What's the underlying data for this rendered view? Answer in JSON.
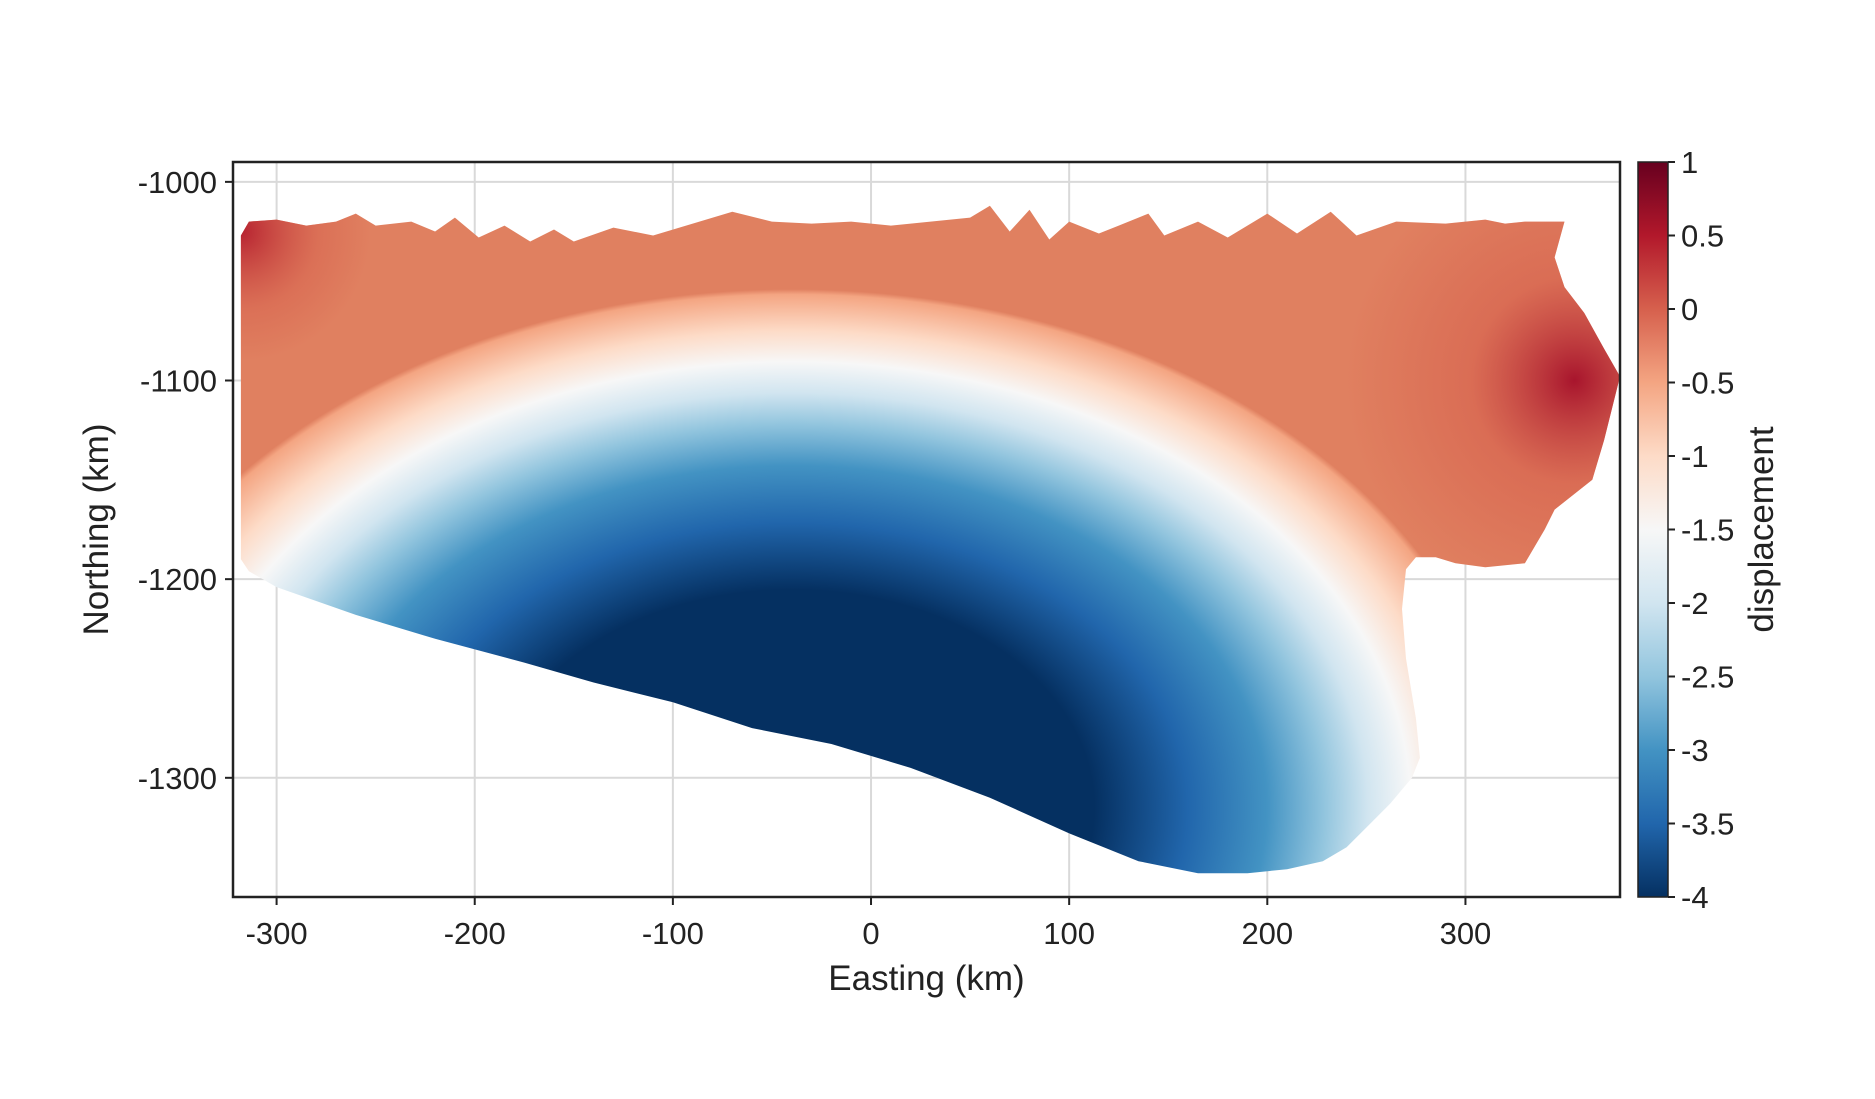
{
  "chart_data": {
    "type": "heatmap",
    "title": "",
    "xlabel": "Easting (km)",
    "ylabel": "Northing (km)",
    "xlim": [
      -322,
      378
    ],
    "ylim": [
      -1360,
      -990
    ],
    "xticks": [
      -300,
      -200,
      -100,
      0,
      100,
      200,
      300
    ],
    "xtick_labels": [
      "-300",
      "-200",
      "-100",
      "0",
      "100",
      "200",
      "300"
    ],
    "yticks": [
      -1000,
      -1100,
      -1200,
      -1300
    ],
    "ytick_labels": [
      "-1000",
      "-1100",
      "-1200",
      "-1300"
    ],
    "grid": true,
    "colorbar": {
      "label": "displacement",
      "min": -4,
      "max": 1,
      "ticks": [
        1,
        0.5,
        0,
        -0.5,
        -1,
        -1.5,
        -2,
        -2.5,
        -3,
        -3.5,
        -4
      ],
      "tick_labels": [
        "1",
        "0.5",
        "0",
        "-0.5",
        "-1",
        "-1.5",
        "-2",
        "-2.5",
        "-3",
        "-3.5",
        "-4"
      ],
      "colormap": "RdBu_r",
      "colors": [
        "#053061",
        "#2166ac",
        "#4393c3",
        "#92c5de",
        "#d1e5f0",
        "#f7f7f7",
        "#fddbc7",
        "#f4a582",
        "#d6604d",
        "#b2182b",
        "#67001f"
      ]
    },
    "field": {
      "description_units": "displacement",
      "center": [
        -40,
        -1315
      ],
      "max_value": 1.0,
      "min_value": -4.0,
      "outline": [
        [
          -318,
          -1027
        ],
        [
          -314,
          -1020
        ],
        [
          -300,
          -1019
        ],
        [
          -285,
          -1022
        ],
        [
          -270,
          -1020
        ],
        [
          -260,
          -1016
        ],
        [
          -250,
          -1022
        ],
        [
          -232,
          -1020
        ],
        [
          -220,
          -1025
        ],
        [
          -210,
          -1018
        ],
        [
          -198,
          -1028
        ],
        [
          -185,
          -1022
        ],
        [
          -172,
          -1030
        ],
        [
          -160,
          -1024
        ],
        [
          -150,
          -1030
        ],
        [
          -130,
          -1023
        ],
        [
          -110,
          -1027
        ],
        [
          -90,
          -1021
        ],
        [
          -70,
          -1015
        ],
        [
          -50,
          -1020
        ],
        [
          -30,
          -1021
        ],
        [
          -10,
          -1020
        ],
        [
          10,
          -1022
        ],
        [
          30,
          -1020
        ],
        [
          50,
          -1018
        ],
        [
          60,
          -1012
        ],
        [
          70,
          -1025
        ],
        [
          80,
          -1014
        ],
        [
          90,
          -1029
        ],
        [
          100,
          -1020
        ],
        [
          115,
          -1026
        ],
        [
          125,
          -1022
        ],
        [
          140,
          -1016
        ],
        [
          148,
          -1027
        ],
        [
          165,
          -1020
        ],
        [
          180,
          -1028
        ],
        [
          200,
          -1016
        ],
        [
          215,
          -1026
        ],
        [
          232,
          -1015
        ],
        [
          245,
          -1027
        ],
        [
          265,
          -1020
        ],
        [
          290,
          -1021
        ],
        [
          310,
          -1019
        ],
        [
          320,
          -1021
        ],
        [
          330,
          -1020
        ],
        [
          350,
          -1020
        ],
        [
          345,
          -1038
        ],
        [
          350,
          -1053
        ],
        [
          360,
          -1066
        ],
        [
          370,
          -1084
        ],
        [
          378,
          -1098
        ],
        [
          370,
          -1130
        ],
        [
          364,
          -1150
        ],
        [
          345,
          -1165
        ],
        [
          340,
          -1175
        ],
        [
          330,
          -1192
        ],
        [
          310,
          -1194
        ],
        [
          295,
          -1192
        ],
        [
          285,
          -1189
        ],
        [
          275,
          -1189
        ],
        [
          270,
          -1195
        ],
        [
          268,
          -1215
        ],
        [
          270,
          -1240
        ],
        [
          275,
          -1270
        ],
        [
          277,
          -1290
        ],
        [
          273,
          -1300
        ],
        [
          262,
          -1313
        ],
        [
          250,
          -1325
        ],
        [
          240,
          -1335
        ],
        [
          228,
          -1342
        ],
        [
          210,
          -1346
        ],
        [
          190,
          -1348
        ],
        [
          165,
          -1348
        ],
        [
          135,
          -1342
        ],
        [
          100,
          -1328
        ],
        [
          60,
          -1310
        ],
        [
          20,
          -1295
        ],
        [
          -20,
          -1283
        ],
        [
          -60,
          -1275
        ],
        [
          -100,
          -1262
        ],
        [
          -140,
          -1252
        ],
        [
          -175,
          -1242
        ],
        [
          -220,
          -1230
        ],
        [
          -260,
          -1218
        ],
        [
          -300,
          -1204
        ],
        [
          -314,
          -1196
        ],
        [
          -318,
          -1190
        ],
        [
          -318,
          -1100
        ],
        [
          -318,
          -1040
        ]
      ]
    }
  }
}
